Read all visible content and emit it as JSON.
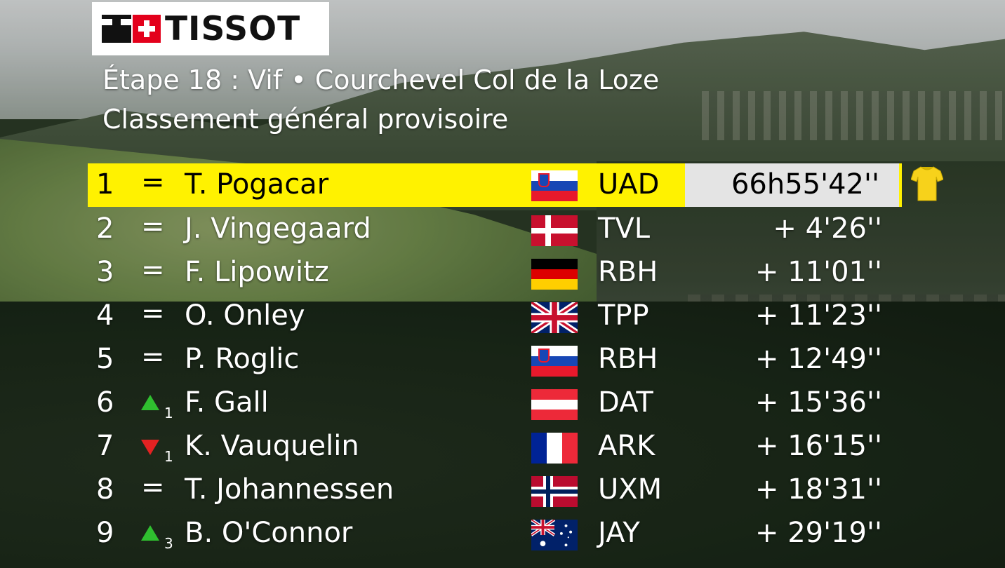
{
  "brand": {
    "logo_text": "TISSOT"
  },
  "header": {
    "stage_title": "Étape 18 : Vif • Courchevel Col de la Loze",
    "subtitle": "Classement général provisoire"
  },
  "colors": {
    "leader_bg": "#fff200",
    "time_box_bg": "#e4e4e4",
    "up": "#2fbf2f",
    "down": "#e32222"
  },
  "standings": [
    {
      "pos": "1",
      "change": "=",
      "change_num": "",
      "name": "T. Pogacar",
      "flag": "slovenia-flag",
      "team": "UAD",
      "time": "66h55'42''"
    },
    {
      "pos": "2",
      "change": "=",
      "change_num": "",
      "name": "J. Vingegaard",
      "flag": "denmark-flag",
      "team": "TVL",
      "time": "+ 4'26''"
    },
    {
      "pos": "3",
      "change": "=",
      "change_num": "",
      "name": "F. Lipowitz",
      "flag": "germany-flag",
      "team": "RBH",
      "time": "+ 11'01''"
    },
    {
      "pos": "4",
      "change": "=",
      "change_num": "",
      "name": "O. Onley",
      "flag": "uk-flag",
      "team": "TPP",
      "time": "+ 11'23''"
    },
    {
      "pos": "5",
      "change": "=",
      "change_num": "",
      "name": "P. Roglic",
      "flag": "slovenia-flag",
      "team": "RBH",
      "time": "+ 12'49''"
    },
    {
      "pos": "6",
      "change": "up",
      "change_num": "1",
      "name": "F. Gall",
      "flag": "austria-flag",
      "team": "DAT",
      "time": "+ 15'36''"
    },
    {
      "pos": "7",
      "change": "down",
      "change_num": "1",
      "name": "K. Vauquelin",
      "flag": "france-flag",
      "team": "ARK",
      "time": "+ 16'15''"
    },
    {
      "pos": "8",
      "change": "=",
      "change_num": "",
      "name": "T. Johannessen",
      "flag": "norway-flag",
      "team": "UXM",
      "time": "+ 18'31''"
    },
    {
      "pos": "9",
      "change": "up",
      "change_num": "3",
      "name": "B. O'Connor",
      "flag": "australia-flag",
      "team": "JAY",
      "time": "+ 29'19''"
    }
  ],
  "leader_icon": "yellow-jersey-icon"
}
